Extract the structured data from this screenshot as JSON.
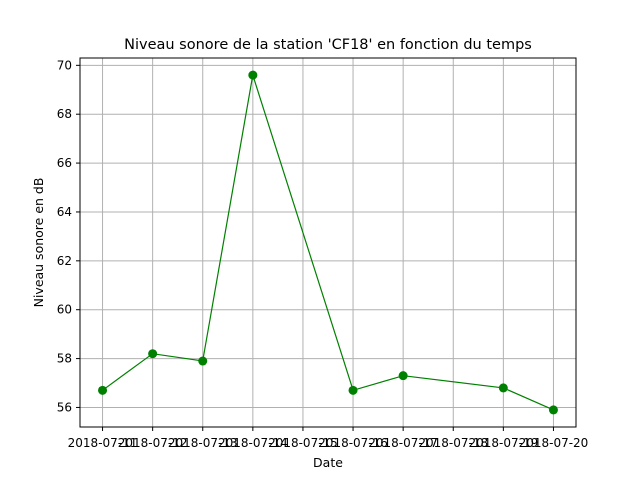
{
  "chart_data": {
    "type": "line",
    "title": "Niveau sonore de la station 'CF18' en fonction du temps",
    "xlabel": "Date",
    "ylabel": "Niveau sonore en dB",
    "x_ticks": [
      "2018-07-11",
      "2018-07-12",
      "2018-07-13",
      "2018-07-14",
      "2018-07-15",
      "2018-07-16",
      "2018-07-17",
      "2018-07-18",
      "2018-07-19",
      "2018-07-20"
    ],
    "y_ticks": [
      "56",
      "58",
      "60",
      "62",
      "64",
      "66",
      "68",
      "70"
    ],
    "xlim": [
      "2018-07-10 13:12",
      "2018-07-20 10:48"
    ],
    "ylim": [
      55.2,
      70.3
    ],
    "grid": true,
    "series": [
      {
        "color": "#008000",
        "marker": "circle",
        "points": [
          {
            "x": "2018-07-11",
            "y": 56.7
          },
          {
            "x": "2018-07-12",
            "y": 58.2
          },
          {
            "x": "2018-07-13",
            "y": 57.9
          },
          {
            "x": "2018-07-14",
            "y": 69.6
          },
          {
            "x": "2018-07-16",
            "y": 56.7
          },
          {
            "x": "2018-07-17",
            "y": 57.3
          },
          {
            "x": "2018-07-19",
            "y": 56.8
          },
          {
            "x": "2018-07-20",
            "y": 55.9
          }
        ]
      }
    ]
  }
}
